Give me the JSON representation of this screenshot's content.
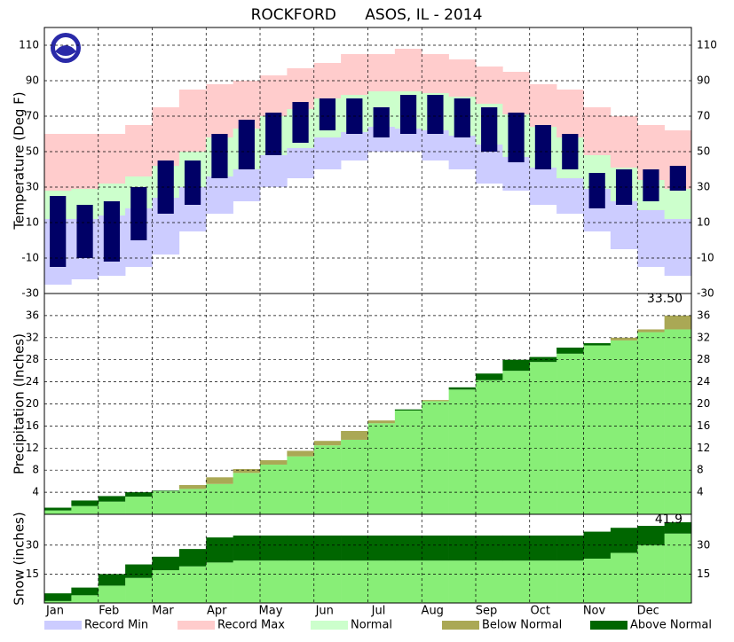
{
  "chart_data": [
    {
      "type": "temperature",
      "title": "ROCKFORD      ASOS, IL - 2014",
      "ylabel": "Temperature (Deg F)",
      "ylim": [
        -30,
        120
      ],
      "yticks": [
        -30,
        -10,
        10,
        30,
        50,
        70,
        90,
        110
      ],
      "grid": true,
      "record_max": [
        60,
        60,
        60,
        65,
        75,
        85,
        88,
        90,
        93,
        97,
        100,
        105,
        105,
        108,
        105,
        102,
        98,
        95,
        88,
        85,
        75,
        70,
        65,
        62
      ],
      "record_min": [
        -25,
        -22,
        -20,
        -15,
        -8,
        5,
        15,
        22,
        30,
        35,
        40,
        45,
        50,
        50,
        45,
        40,
        32,
        28,
        20,
        15,
        5,
        -5,
        -15,
        -20
      ],
      "normal_high": [
        28,
        29,
        32,
        36,
        42,
        50,
        58,
        63,
        70,
        74,
        80,
        82,
        84,
        84,
        83,
        81,
        77,
        71,
        64,
        58,
        48,
        41,
        34,
        29
      ],
      "normal_low": [
        12,
        12,
        14,
        18,
        24,
        30,
        36,
        40,
        48,
        52,
        58,
        61,
        64,
        63,
        62,
        59,
        54,
        47,
        41,
        35,
        29,
        22,
        17,
        12
      ],
      "actual_high": [
        25,
        20,
        22,
        30,
        45,
        45,
        60,
        68,
        72,
        78,
        80,
        80,
        75,
        82,
        82,
        80,
        75,
        72,
        65,
        60,
        38,
        40,
        40,
        42
      ],
      "actual_low": [
        -15,
        -10,
        -12,
        0,
        15,
        20,
        35,
        40,
        48,
        55,
        62,
        60,
        58,
        60,
        60,
        58,
        50,
        44,
        40,
        40,
        18,
        20,
        22,
        28
      ],
      "actual_color": "#000066"
    },
    {
      "type": "cumulative",
      "ylabel": "Precipitation (Inches)",
      "ylim": [
        0,
        40
      ],
      "yticks": [
        4,
        8,
        12,
        16,
        20,
        24,
        28,
        32,
        36
      ],
      "grid": true,
      "observed": [
        1.2,
        2.5,
        3.3,
        4.0,
        4.3,
        4.6,
        5.5,
        7.5,
        9.0,
        10.5,
        12.5,
        13.5,
        16.5,
        19.0,
        20.5,
        23.0,
        25.5,
        28.0,
        28.5,
        30.2,
        31.0,
        31.5,
        33.0,
        33.5
      ],
      "normal": [
        0.7,
        1.5,
        2.3,
        3.2,
        4.2,
        5.3,
        6.7,
        8.2,
        9.8,
        11.5,
        13.3,
        15.1,
        17.0,
        18.8,
        20.7,
        22.6,
        24.3,
        26.0,
        27.6,
        29.1,
        30.6,
        32.0,
        33.5,
        36.0
      ],
      "total_label": "33.50",
      "observed_color": "#88ee77"
    },
    {
      "type": "cumulative",
      "ylabel": "Snow (inches)",
      "ylim": [
        0,
        46
      ],
      "yticks": [
        15,
        30
      ],
      "grid": true,
      "observed": [
        5,
        8,
        15,
        20,
        24,
        28,
        34,
        35,
        35,
        35,
        35,
        35,
        35,
        35,
        35,
        35,
        35,
        35,
        35,
        35,
        37,
        39,
        40,
        41.9
      ],
      "normal": [
        1,
        4,
        9,
        13,
        17,
        19,
        21,
        22,
        22,
        22,
        22,
        22,
        22,
        22,
        22,
        22,
        22,
        22,
        22,
        22,
        23,
        26,
        30,
        36
      ],
      "total_label": "41.9",
      "observed_color": "#88ee77",
      "categories": [
        "Jan",
        "Feb",
        "Mar",
        "Apr",
        "May",
        "Jun",
        "Jul",
        "Aug",
        "Sep",
        "Oct",
        "Nov",
        "Dec"
      ]
    }
  ],
  "legend": [
    {
      "name": "Record Min",
      "color": "#ccccff"
    },
    {
      "name": "Record Max",
      "color": "#ffcccc"
    },
    {
      "name": "Normal",
      "color": "#ccffcc"
    },
    {
      "name": "Below Normal",
      "color": "#aaa855"
    },
    {
      "name": "Above Normal",
      "color": "#006600"
    }
  ]
}
